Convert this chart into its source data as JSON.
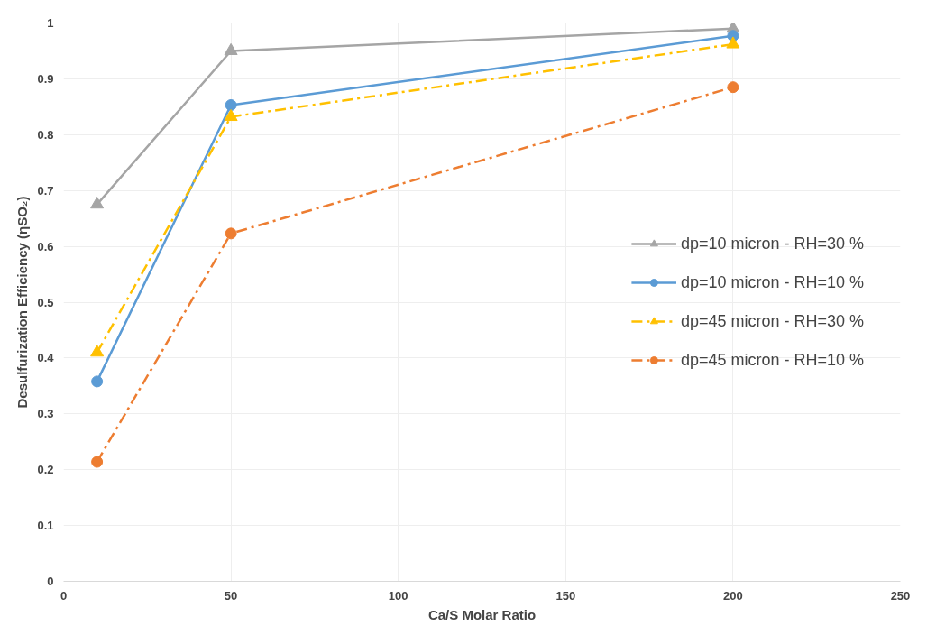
{
  "chart_data": {
    "type": "line",
    "xlabel": "Ca/S Molar Ratio",
    "ylabel": "Desulfurization Efficiency (ηSO₂)",
    "x": [
      10,
      50,
      200
    ],
    "series": [
      {
        "name": "dp=10 micron - RH=30 %",
        "color": "#a5a5a5",
        "values": [
          0.675,
          0.95,
          0.99
        ],
        "marker": "triangle",
        "line_style": "solid"
      },
      {
        "name": "dp=10 micron - RH=10 %",
        "color": "#5b9bd5",
        "values": [
          0.358,
          0.853,
          0.977
        ],
        "marker": "circle",
        "line_style": "solid"
      },
      {
        "name": "dp=45 micron - RH=30 %",
        "color": "#ffc000",
        "values": [
          0.41,
          0.832,
          0.962
        ],
        "marker": "triangle",
        "line_style": "dashed"
      },
      {
        "name": "dp=45 micron - RH=10 %",
        "color": "#ed7d31",
        "values": [
          0.214,
          0.623,
          0.885
        ],
        "marker": "circle",
        "line_style": "dashed"
      }
    ],
    "xlim": [
      0,
      250
    ],
    "xticks": [
      0,
      50,
      100,
      150,
      200,
      250
    ],
    "ylim": [
      0,
      1
    ],
    "yticks": [
      0,
      0.1,
      0.2,
      0.3,
      0.4,
      0.5,
      0.6,
      0.7,
      0.8,
      0.9,
      1
    ],
    "grid": true,
    "legend": "right"
  }
}
